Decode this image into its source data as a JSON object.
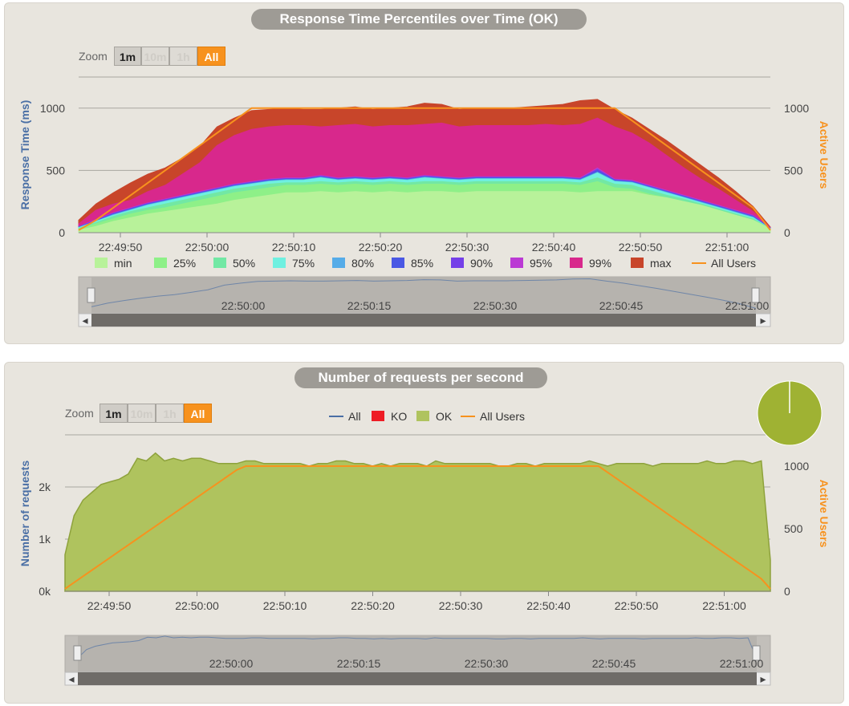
{
  "colors": {
    "min": "#b8f29a",
    "p25": "#8ef088",
    "p50": "#72e8a4",
    "p75": "#6ff0e0",
    "p80": "#56ace8",
    "p85": "#4a58e4",
    "p90": "#7540e8",
    "p95": "#bb3ad4",
    "p99": "#d8288c",
    "max": "#c8452a",
    "users": "#f7921e",
    "ok_fill": "#afc35e",
    "ok_line": "#8ea23c",
    "all_line": "#4a6fa5",
    "ko": "#ee1c24"
  },
  "chart1": {
    "title": "Response Time Percentiles over Time (OK)",
    "zoom": {
      "label": "Zoom",
      "buttons": [
        "1m",
        "10m",
        "1h",
        "All"
      ]
    },
    "ylabel_left": "Response Time (ms)",
    "ylabel_right": "Active Users",
    "left_ticks": [
      "0",
      "500",
      "1000"
    ],
    "right_ticks": [
      "0",
      "500",
      "1000"
    ],
    "x_ticks": [
      "22:49:50",
      "22:50:00",
      "22:50:10",
      "22:50:20",
      "22:50:30",
      "22:50:40",
      "22:50:50",
      "22:51:00"
    ],
    "legend": [
      "min",
      "25%",
      "50%",
      "75%",
      "80%",
      "85%",
      "90%",
      "95%",
      "99%",
      "max",
      "All Users"
    ],
    "navigator_ticks": [
      "22:50:00",
      "22:50:15",
      "22:50:30",
      "22:50:45",
      "22:51:00"
    ]
  },
  "chart2": {
    "title": "Number of requests per second",
    "zoom": {
      "label": "Zoom",
      "buttons": [
        "1m",
        "10m",
        "1h",
        "All"
      ]
    },
    "ylabel_left": "Number of requests",
    "ylabel_right": "Active Users",
    "left_ticks": [
      "0k",
      "1k",
      "2k"
    ],
    "right_ticks": [
      "0",
      "500",
      "1000"
    ],
    "x_ticks": [
      "22:49:50",
      "22:50:00",
      "22:50:10",
      "22:50:20",
      "22:50:30",
      "22:50:40",
      "22:50:50",
      "22:51:00"
    ],
    "legend": [
      "All",
      "KO",
      "OK",
      "All Users"
    ],
    "navigator_ticks": [
      "22:50:00",
      "22:50:15",
      "22:50:30",
      "22:50:45",
      "22:51:00"
    ]
  },
  "chart_data": [
    {
      "type": "area",
      "title": "Response Time Percentiles over Time (OK)",
      "xlabel": "",
      "ylabel": "Response Time (ms)",
      "y2label": "Active Users",
      "ylim": [
        0,
        1250
      ],
      "y2lim": [
        0,
        1250
      ],
      "x_start": "22:49:44",
      "x_end": "22:51:04",
      "x_step_seconds": 2,
      "grid": true,
      "legend_position": "bottom",
      "series": [
        {
          "name": "min",
          "values": [
            20,
            50,
            90,
            120,
            150,
            170,
            190,
            210,
            230,
            260,
            280,
            300,
            320,
            320,
            330,
            320,
            330,
            320,
            330,
            320,
            330,
            330,
            320,
            330,
            330,
            330,
            330,
            330,
            330,
            320,
            330,
            330,
            330,
            300,
            280,
            250,
            220,
            180,
            140,
            100,
            30
          ]
        },
        {
          "name": "25%",
          "values": [
            30,
            70,
            110,
            150,
            180,
            200,
            230,
            260,
            290,
            320,
            340,
            360,
            380,
            380,
            390,
            380,
            390,
            380,
            390,
            380,
            390,
            390,
            380,
            390,
            390,
            390,
            390,
            390,
            390,
            380,
            410,
            360,
            350,
            310,
            280,
            250,
            220,
            180,
            140,
            100,
            30
          ]
        },
        {
          "name": "50%",
          "values": [
            35,
            80,
            130,
            170,
            200,
            230,
            260,
            290,
            320,
            350,
            370,
            390,
            400,
            400,
            410,
            400,
            410,
            400,
            410,
            400,
            410,
            410,
            400,
            410,
            410,
            410,
            410,
            410,
            410,
            400,
            440,
            390,
            380,
            340,
            300,
            270,
            230,
            190,
            150,
            110,
            30
          ]
        },
        {
          "name": "75%",
          "values": [
            40,
            90,
            140,
            180,
            220,
            250,
            280,
            310,
            340,
            370,
            390,
            410,
            420,
            420,
            440,
            420,
            430,
            420,
            430,
            420,
            440,
            430,
            420,
            430,
            430,
            430,
            430,
            430,
            430,
            420,
            480,
            410,
            400,
            360,
            320,
            280,
            240,
            200,
            160,
            120,
            30
          ]
        },
        {
          "name": "80%",
          "values": [
            42,
            92,
            145,
            185,
            225,
            255,
            285,
            315,
            345,
            375,
            395,
            415,
            425,
            425,
            445,
            425,
            435,
            425,
            435,
            425,
            445,
            435,
            425,
            435,
            435,
            435,
            435,
            435,
            435,
            425,
            485,
            415,
            405,
            365,
            325,
            285,
            245,
            205,
            165,
            125,
            32
          ]
        },
        {
          "name": "85%",
          "values": [
            45,
            95,
            150,
            190,
            230,
            260,
            290,
            320,
            350,
            380,
            400,
            420,
            430,
            430,
            450,
            430,
            440,
            430,
            440,
            430,
            450,
            440,
            430,
            440,
            440,
            440,
            440,
            440,
            440,
            430,
            500,
            420,
            410,
            370,
            330,
            290,
            250,
            210,
            170,
            130,
            35
          ]
        },
        {
          "name": "90%",
          "values": [
            48,
            100,
            155,
            195,
            235,
            265,
            295,
            325,
            355,
            385,
            405,
            425,
            435,
            435,
            455,
            435,
            445,
            435,
            445,
            435,
            455,
            445,
            435,
            445,
            445,
            445,
            445,
            445,
            445,
            435,
            510,
            425,
            415,
            375,
            335,
            295,
            255,
            215,
            175,
            135,
            36
          ]
        },
        {
          "name": "95%",
          "values": [
            50,
            105,
            160,
            200,
            240,
            270,
            300,
            330,
            360,
            390,
            410,
            430,
            440,
            440,
            460,
            440,
            450,
            440,
            450,
            440,
            460,
            450,
            440,
            450,
            450,
            450,
            450,
            450,
            450,
            440,
            520,
            430,
            420,
            380,
            340,
            300,
            260,
            220,
            180,
            140,
            38
          ]
        },
        {
          "name": "99%",
          "values": [
            70,
            180,
            230,
            260,
            330,
            380,
            470,
            560,
            700,
            780,
            830,
            850,
            860,
            860,
            850,
            860,
            870,
            850,
            860,
            860,
            870,
            880,
            850,
            860,
            860,
            860,
            860,
            870,
            860,
            870,
            920,
            850,
            800,
            720,
            620,
            520,
            430,
            350,
            260,
            170,
            40
          ]
        },
        {
          "name": "max",
          "values": [
            100,
            230,
            320,
            400,
            470,
            520,
            600,
            690,
            850,
            920,
            980,
            990,
            1000,
            990,
            990,
            1000,
            1010,
            990,
            1000,
            1010,
            1040,
            1030,
            990,
            1000,
            1000,
            1000,
            1010,
            1020,
            1030,
            1060,
            1070,
            990,
            920,
            830,
            740,
            640,
            540,
            440,
            330,
            210,
            45
          ]
        },
        {
          "name": "All Users",
          "values": [
            20,
            100,
            200,
            300,
            400,
            500,
            600,
            700,
            800,
            900,
            1000,
            1000,
            1000,
            1000,
            1000,
            1000,
            1000,
            1000,
            1000,
            1000,
            1000,
            1000,
            1000,
            1000,
            1000,
            1000,
            1000,
            1000,
            1000,
            1000,
            1000,
            1000,
            900,
            800,
            700,
            600,
            500,
            400,
            300,
            200,
            20
          ]
        }
      ]
    },
    {
      "type": "area",
      "title": "Number of requests per second",
      "xlabel": "",
      "ylabel": "Number of requests",
      "y2label": "Active Users",
      "ylim": [
        0,
        3000
      ],
      "y2lim": [
        0,
        1250
      ],
      "x_start": "22:49:47",
      "x_end": "22:51:04",
      "x_step_seconds": 1,
      "grid": true,
      "legend_position": "top",
      "series": [
        {
          "name": "OK",
          "values": [
            700,
            1450,
            1750,
            1900,
            2050,
            2100,
            2150,
            2250,
            2550,
            2500,
            2650,
            2500,
            2550,
            2500,
            2550,
            2550,
            2500,
            2450,
            2450,
            2450,
            2500,
            2500,
            2450,
            2450,
            2450,
            2450,
            2450,
            2400,
            2450,
            2450,
            2500,
            2500,
            2450,
            2450,
            2400,
            2450,
            2400,
            2450,
            2450,
            2450,
            2400,
            2500,
            2450,
            2450,
            2450,
            2450,
            2450,
            2450,
            2400,
            2400,
            2450,
            2450,
            2400,
            2450,
            2450,
            2450,
            2450,
            2450,
            2500,
            2450,
            2400,
            2450,
            2450,
            2450,
            2450,
            2400,
            2450,
            2450,
            2450,
            2450,
            2450,
            2500,
            2450,
            2450,
            2500,
            2500,
            2450,
            2500,
            600
          ]
        },
        {
          "name": "All",
          "values": [
            700,
            1450,
            1750,
            1900,
            2050,
            2100,
            2150,
            2250,
            2550,
            2500,
            2650,
            2500,
            2550,
            2500,
            2550,
            2550,
            2500,
            2450,
            2450,
            2450,
            2500,
            2500,
            2450,
            2450,
            2450,
            2450,
            2450,
            2400,
            2450,
            2450,
            2500,
            2500,
            2450,
            2450,
            2400,
            2450,
            2400,
            2450,
            2450,
            2450,
            2400,
            2500,
            2450,
            2450,
            2450,
            2450,
            2450,
            2450,
            2400,
            2400,
            2450,
            2450,
            2400,
            2450,
            2450,
            2450,
            2450,
            2450,
            2500,
            2450,
            2400,
            2450,
            2450,
            2450,
            2450,
            2400,
            2450,
            2450,
            2450,
            2450,
            2450,
            2500,
            2450,
            2450,
            2500,
            2500,
            2450,
            2500,
            600
          ]
        },
        {
          "name": "KO",
          "values": [
            0,
            0,
            0,
            0,
            0,
            0,
            0,
            0,
            0,
            0,
            0,
            0,
            0,
            0,
            0,
            0,
            0,
            0,
            0,
            0,
            0,
            0,
            0,
            0,
            0,
            0,
            0,
            0,
            0,
            0,
            0,
            0,
            0,
            0,
            0,
            0,
            0,
            0,
            0,
            0,
            0,
            0,
            0,
            0,
            0,
            0,
            0,
            0,
            0,
            0,
            0,
            0,
            0,
            0,
            0,
            0,
            0,
            0,
            0,
            0,
            0,
            0,
            0,
            0,
            0,
            0,
            0,
            0,
            0,
            0,
            0,
            0,
            0,
            0,
            0,
            0,
            0,
            0,
            0
          ]
        },
        {
          "name": "All Users",
          "values": [
            20,
            70,
            120,
            170,
            220,
            270,
            320,
            370,
            420,
            470,
            520,
            570,
            620,
            670,
            720,
            770,
            820,
            870,
            920,
            970,
            1000,
            1000,
            1000,
            1000,
            1000,
            1000,
            1000,
            1000,
            1000,
            1000,
            1000,
            1000,
            1000,
            1000,
            1000,
            1000,
            1000,
            1000,
            1000,
            1000,
            1000,
            1000,
            1000,
            1000,
            1000,
            1000,
            1000,
            1000,
            1000,
            1000,
            1000,
            1000,
            1000,
            1000,
            1000,
            1000,
            1000,
            1000,
            1000,
            1000,
            950,
            900,
            850,
            800,
            750,
            700,
            650,
            600,
            550,
            500,
            450,
            400,
            350,
            300,
            250,
            200,
            150,
            100,
            20
          ]
        }
      ]
    },
    {
      "type": "pie",
      "title": "",
      "categories": [
        "OK",
        "KO"
      ],
      "values": [
        100,
        0
      ]
    }
  ]
}
